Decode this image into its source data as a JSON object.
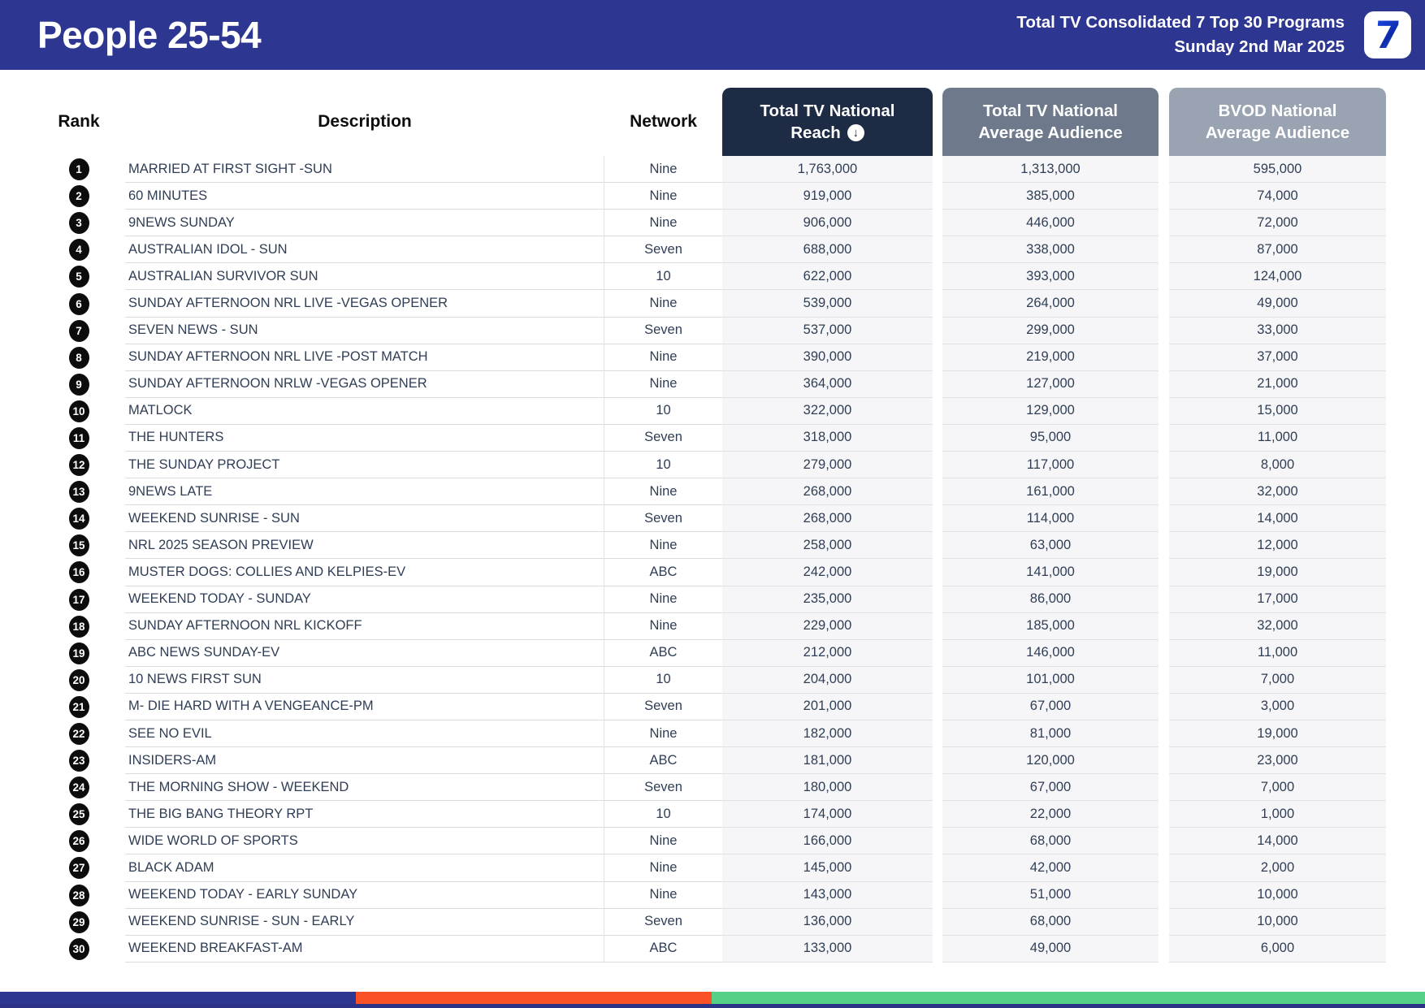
{
  "header": {
    "title": "People 25-54",
    "subtitle_line1": "Total TV Consolidated 7 Top 30 Programs",
    "subtitle_line2": "Sunday 2nd Mar 2025",
    "logo": "7"
  },
  "columns": {
    "rank": "Rank",
    "description": "Description",
    "network": "Network",
    "reach_line1": "Total TV National",
    "reach_line2": "Reach",
    "reach_sort_icon": "circle-down-arrow",
    "avg_line1": "Total TV National",
    "avg_line2": "Average Audience",
    "bvod_line1": "BVOD National",
    "bvod_line2": "Average Audience"
  },
  "colors": {
    "topbar": "#2d3792",
    "reach_header": "#1e2b45",
    "avg_header": "#6e7a8c",
    "bvod_header": "#9aa3b1",
    "footer_blue": "#2d3792",
    "footer_orange": "#fb5126",
    "footer_green": "#55d086"
  },
  "rows": [
    {
      "rank": "1",
      "description": "MARRIED AT FIRST SIGHT -SUN",
      "network": "Nine",
      "reach": "1,763,000",
      "avg_audience": "1,313,000",
      "bvod_audience": "595,000"
    },
    {
      "rank": "2",
      "description": "60 MINUTES",
      "network": "Nine",
      "reach": "919,000",
      "avg_audience": "385,000",
      "bvod_audience": "74,000"
    },
    {
      "rank": "3",
      "description": "9NEWS SUNDAY",
      "network": "Nine",
      "reach": "906,000",
      "avg_audience": "446,000",
      "bvod_audience": "72,000"
    },
    {
      "rank": "4",
      "description": "AUSTRALIAN IDOL - SUN",
      "network": "Seven",
      "reach": "688,000",
      "avg_audience": "338,000",
      "bvod_audience": "87,000"
    },
    {
      "rank": "5",
      "description": "AUSTRALIAN SURVIVOR SUN",
      "network": "10",
      "reach": "622,000",
      "avg_audience": "393,000",
      "bvod_audience": "124,000"
    },
    {
      "rank": "6",
      "description": "SUNDAY AFTERNOON NRL LIVE -VEGAS OPENER",
      "network": "Nine",
      "reach": "539,000",
      "avg_audience": "264,000",
      "bvod_audience": "49,000"
    },
    {
      "rank": "7",
      "description": "SEVEN NEWS - SUN",
      "network": "Seven",
      "reach": "537,000",
      "avg_audience": "299,000",
      "bvod_audience": "33,000"
    },
    {
      "rank": "8",
      "description": "SUNDAY AFTERNOON NRL LIVE -POST MATCH",
      "network": "Nine",
      "reach": "390,000",
      "avg_audience": "219,000",
      "bvod_audience": "37,000"
    },
    {
      "rank": "9",
      "description": "SUNDAY AFTERNOON NRLW -VEGAS OPENER",
      "network": "Nine",
      "reach": "364,000",
      "avg_audience": "127,000",
      "bvod_audience": "21,000"
    },
    {
      "rank": "10",
      "description": "MATLOCK",
      "network": "10",
      "reach": "322,000",
      "avg_audience": "129,000",
      "bvod_audience": "15,000"
    },
    {
      "rank": "11",
      "description": "THE HUNTERS",
      "network": "Seven",
      "reach": "318,000",
      "avg_audience": "95,000",
      "bvod_audience": "11,000"
    },
    {
      "rank": "12",
      "description": "THE SUNDAY PROJECT",
      "network": "10",
      "reach": "279,000",
      "avg_audience": "117,000",
      "bvod_audience": "8,000"
    },
    {
      "rank": "13",
      "description": "9NEWS LATE",
      "network": "Nine",
      "reach": "268,000",
      "avg_audience": "161,000",
      "bvod_audience": "32,000"
    },
    {
      "rank": "14",
      "description": "WEEKEND SUNRISE - SUN",
      "network": "Seven",
      "reach": "268,000",
      "avg_audience": "114,000",
      "bvod_audience": "14,000"
    },
    {
      "rank": "15",
      "description": "NRL 2025 SEASON PREVIEW",
      "network": "Nine",
      "reach": "258,000",
      "avg_audience": "63,000",
      "bvod_audience": "12,000"
    },
    {
      "rank": "16",
      "description": "MUSTER DOGS: COLLIES AND KELPIES-EV",
      "network": "ABC",
      "reach": "242,000",
      "avg_audience": "141,000",
      "bvod_audience": "19,000"
    },
    {
      "rank": "17",
      "description": "WEEKEND TODAY - SUNDAY",
      "network": "Nine",
      "reach": "235,000",
      "avg_audience": "86,000",
      "bvod_audience": "17,000"
    },
    {
      "rank": "18",
      "description": "SUNDAY AFTERNOON NRL KICKOFF",
      "network": "Nine",
      "reach": "229,000",
      "avg_audience": "185,000",
      "bvod_audience": "32,000"
    },
    {
      "rank": "19",
      "description": "ABC NEWS SUNDAY-EV",
      "network": "ABC",
      "reach": "212,000",
      "avg_audience": "146,000",
      "bvod_audience": "11,000"
    },
    {
      "rank": "20",
      "description": "10 NEWS FIRST SUN",
      "network": "10",
      "reach": "204,000",
      "avg_audience": "101,000",
      "bvod_audience": "7,000"
    },
    {
      "rank": "21",
      "description": "M- DIE HARD WITH A VENGEANCE-PM",
      "network": "Seven",
      "reach": "201,000",
      "avg_audience": "67,000",
      "bvod_audience": "3,000"
    },
    {
      "rank": "22",
      "description": "SEE NO EVIL",
      "network": "Nine",
      "reach": "182,000",
      "avg_audience": "81,000",
      "bvod_audience": "19,000"
    },
    {
      "rank": "23",
      "description": "INSIDERS-AM",
      "network": "ABC",
      "reach": "181,000",
      "avg_audience": "120,000",
      "bvod_audience": "23,000"
    },
    {
      "rank": "24",
      "description": "THE MORNING SHOW - WEEKEND",
      "network": "Seven",
      "reach": "180,000",
      "avg_audience": "67,000",
      "bvod_audience": "7,000"
    },
    {
      "rank": "25",
      "description": "THE BIG BANG THEORY RPT",
      "network": "10",
      "reach": "174,000",
      "avg_audience": "22,000",
      "bvod_audience": "1,000"
    },
    {
      "rank": "26",
      "description": "WIDE WORLD OF SPORTS",
      "network": "Nine",
      "reach": "166,000",
      "avg_audience": "68,000",
      "bvod_audience": "14,000"
    },
    {
      "rank": "27",
      "description": "BLACK ADAM",
      "network": "Nine",
      "reach": "145,000",
      "avg_audience": "42,000",
      "bvod_audience": "2,000"
    },
    {
      "rank": "28",
      "description": "WEEKEND TODAY - EARLY SUNDAY",
      "network": "Nine",
      "reach": "143,000",
      "avg_audience": "51,000",
      "bvod_audience": "10,000"
    },
    {
      "rank": "29",
      "description": "WEEKEND SUNRISE - SUN - EARLY",
      "network": "Seven",
      "reach": "136,000",
      "avg_audience": "68,000",
      "bvod_audience": "10,000"
    },
    {
      "rank": "30",
      "description": "WEEKEND BREAKFAST-AM",
      "network": "ABC",
      "reach": "133,000",
      "avg_audience": "49,000",
      "bvod_audience": "6,000"
    }
  ]
}
